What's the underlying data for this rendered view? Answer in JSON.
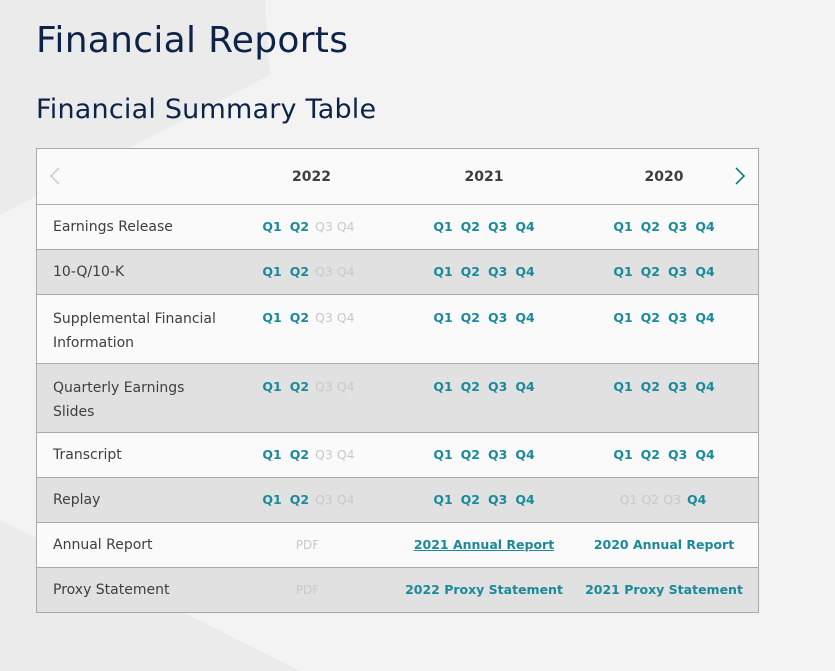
{
  "page": {
    "title": "Financial Reports",
    "section_title": "Financial Summary Table"
  },
  "table": {
    "years": [
      "2022",
      "2021",
      "2020"
    ],
    "nav": {
      "prev_icon": "chevron-left-icon",
      "next_icon": "chevron-right-icon",
      "prev_enabled": false,
      "next_enabled": true
    },
    "rows": [
      {
        "label": "Earnings Release",
        "cols": [
          {
            "Q1": true,
            "Q2": true,
            "Q3": false,
            "Q4": false
          },
          {
            "Q1": true,
            "Q2": true,
            "Q3": true,
            "Q4": true
          },
          {
            "Q1": true,
            "Q2": true,
            "Q3": true,
            "Q4": true
          }
        ]
      },
      {
        "label": "10-Q/10-K",
        "cols": [
          {
            "Q1": true,
            "Q2": true,
            "Q3": false,
            "Q4": false
          },
          {
            "Q1": true,
            "Q2": true,
            "Q3": true,
            "Q4": true
          },
          {
            "Q1": true,
            "Q2": true,
            "Q3": true,
            "Q4": true
          }
        ]
      },
      {
        "label": "Supplemental Financial Information",
        "cols": [
          {
            "Q1": true,
            "Q2": true,
            "Q3": false,
            "Q4": false
          },
          {
            "Q1": true,
            "Q2": true,
            "Q3": true,
            "Q4": true
          },
          {
            "Q1": true,
            "Q2": true,
            "Q3": true,
            "Q4": true
          }
        ]
      },
      {
        "label": "Quarterly Earnings Slides",
        "cols": [
          {
            "Q1": true,
            "Q2": true,
            "Q3": false,
            "Q4": false
          },
          {
            "Q1": true,
            "Q2": true,
            "Q3": true,
            "Q4": true
          },
          {
            "Q1": true,
            "Q2": true,
            "Q3": true,
            "Q4": true
          }
        ]
      },
      {
        "label": "Transcript",
        "cols": [
          {
            "Q1": true,
            "Q2": true,
            "Q3": false,
            "Q4": false
          },
          {
            "Q1": true,
            "Q2": true,
            "Q3": true,
            "Q4": true
          },
          {
            "Q1": true,
            "Q2": true,
            "Q3": true,
            "Q4": true
          }
        ]
      },
      {
        "label": "Replay",
        "cols": [
          {
            "Q1": true,
            "Q2": true,
            "Q3": false,
            "Q4": false
          },
          {
            "Q1": true,
            "Q2": true,
            "Q3": true,
            "Q4": true
          },
          {
            "Q1": false,
            "Q2": false,
            "Q3": false,
            "Q4": true
          }
        ]
      }
    ],
    "quarter_labels": [
      "Q1",
      "Q2",
      "Q3",
      "Q4"
    ],
    "annual_report": {
      "label": "Annual Report",
      "col1": "PDF",
      "col2": "2021 Annual Report",
      "col3": "2020 Annual Report"
    },
    "proxy_statement": {
      "label": "Proxy Statement",
      "col1": "PDF",
      "col2": "2022 Proxy Statement",
      "col3": "2021 Proxy Statement"
    }
  },
  "colors": {
    "link": "#1a8a9a",
    "disabled": "#c9c9c9",
    "title": "#0d2448",
    "alt_row": "#e1e1e1",
    "border": "#a9a9a9"
  }
}
